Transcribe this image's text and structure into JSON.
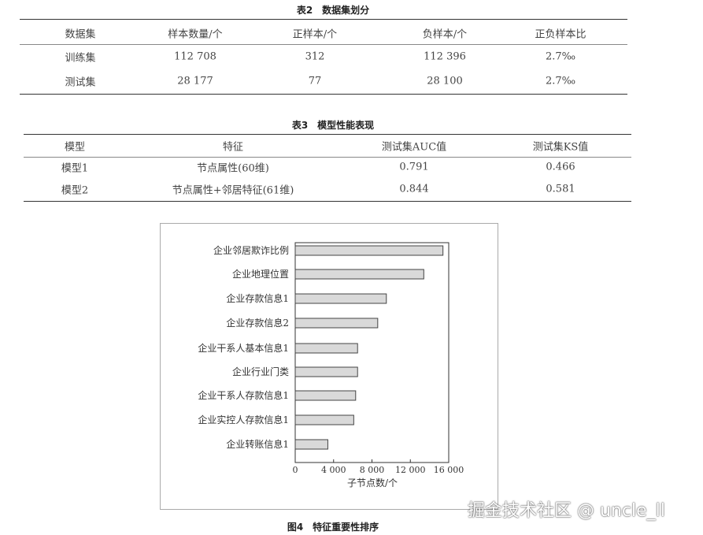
{
  "table2": {
    "caption": "表2　数据集划分",
    "headers": [
      "数据集",
      "样本数量/个",
      "正样本/个",
      "负样本/个",
      "正负样本比"
    ],
    "rows": [
      [
        "训练集",
        "112 708",
        "312",
        "112 396",
        "2.7‰"
      ],
      [
        "测试集",
        "28 177",
        "77",
        "28 100",
        "2.7‰"
      ]
    ]
  },
  "table3": {
    "caption": "表3　模型性能表现",
    "headers": [
      "模型",
      "特征",
      "测试集AUC值",
      "测试集KS值"
    ],
    "rows": [
      [
        "模型1",
        "节点属性(60维)",
        "0.791",
        "0.466"
      ],
      [
        "模型2",
        "节点属性+邻居特征(61维)",
        "0.844",
        "0.581"
      ]
    ]
  },
  "figure": {
    "caption": "图4　特征重要性排序"
  },
  "chart_data": {
    "type": "bar",
    "orientation": "horizontal",
    "categories": [
      "企业邻居欺诈比例",
      "企业地理位置",
      "企业存款信息1",
      "企业存款信息2",
      "企业干系人基本信息1",
      "企业行业门类",
      "企业干系人存款信息1",
      "企业实控人存款信息1",
      "企业转账信息1"
    ],
    "values": [
      15400,
      13400,
      9500,
      8600,
      6500,
      6500,
      6300,
      6100,
      3400
    ],
    "xlabel": "子节点数/个",
    "xlim": [
      0,
      16000
    ],
    "xticks": [
      "0",
      "4 000",
      "8 000",
      "12 000",
      "16 000"
    ],
    "bar_color": "#d9d9d9",
    "grid": false
  },
  "watermark": "掘金技术社区 @ uncle_ll"
}
